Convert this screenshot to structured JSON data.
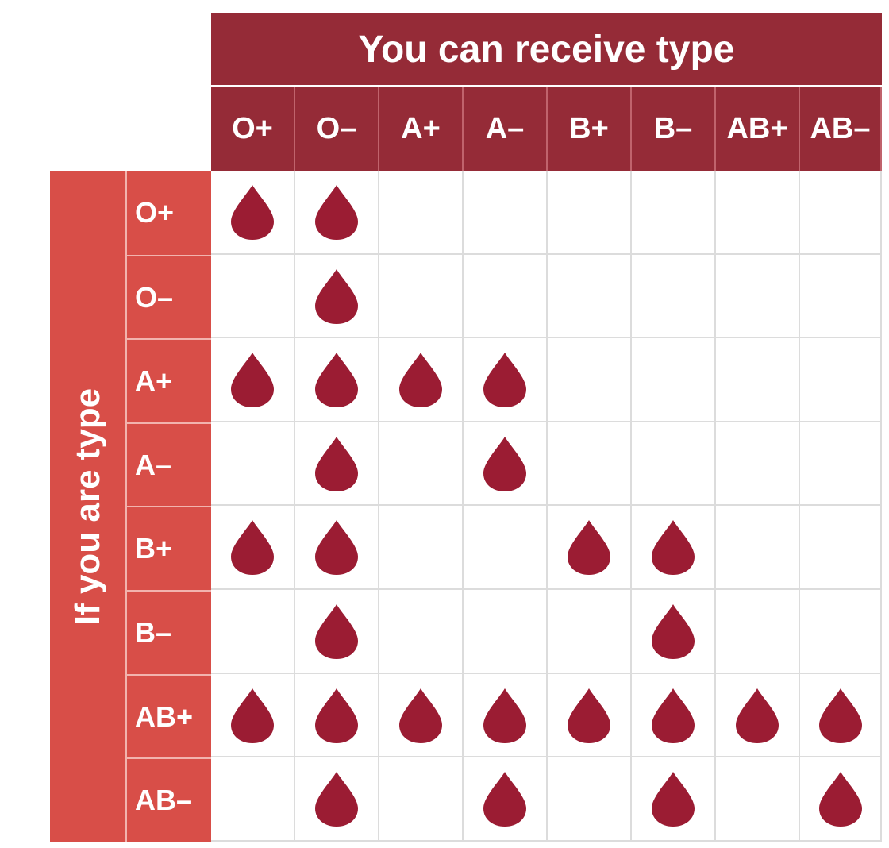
{
  "header": {
    "title": "You can receive type"
  },
  "side_label": "If you are type",
  "columns": [
    "O+",
    "O–",
    "A+",
    "A–",
    "B+",
    "B–",
    "AB+",
    "AB–"
  ],
  "rows": [
    {
      "label": "O+",
      "compatible": [
        1,
        1,
        0,
        0,
        0,
        0,
        0,
        0
      ]
    },
    {
      "label": "O–",
      "compatible": [
        0,
        1,
        0,
        0,
        0,
        0,
        0,
        0
      ]
    },
    {
      "label": "A+",
      "compatible": [
        1,
        1,
        1,
        1,
        0,
        0,
        0,
        0
      ]
    },
    {
      "label": "A–",
      "compatible": [
        0,
        1,
        0,
        1,
        0,
        0,
        0,
        0
      ]
    },
    {
      "label": "B+",
      "compatible": [
        1,
        1,
        0,
        0,
        1,
        1,
        0,
        0
      ]
    },
    {
      "label": "B–",
      "compatible": [
        0,
        1,
        0,
        0,
        0,
        1,
        0,
        0
      ]
    },
    {
      "label": "AB+",
      "compatible": [
        1,
        1,
        1,
        1,
        1,
        1,
        1,
        1
      ]
    },
    {
      "label": "AB–",
      "compatible": [
        0,
        1,
        0,
        1,
        0,
        1,
        0,
        1
      ]
    }
  ],
  "colors": {
    "column_header": "#952b37",
    "row_header": "#d84e48",
    "drop": "#9b1c33",
    "grid": "#dcdcdc"
  },
  "icon": "blood-drop-icon"
}
